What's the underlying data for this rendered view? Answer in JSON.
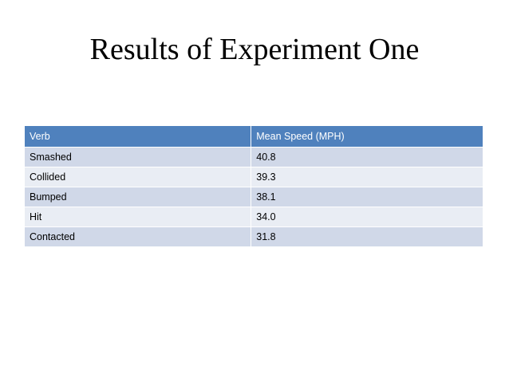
{
  "slide": {
    "title": "Results of Experiment One"
  },
  "table": {
    "headers": [
      "Verb",
      "Mean Speed (MPH)"
    ],
    "rows": [
      [
        "Smashed",
        "40.8"
      ],
      [
        "Collided",
        "39.3"
      ],
      [
        "Bumped",
        "38.1"
      ],
      [
        "Hit",
        "34.0"
      ],
      [
        "Contacted",
        "31.8"
      ]
    ],
    "colors": {
      "header_bg": "#4f81bd",
      "header_text": "#ffffff",
      "row_odd_bg": "#d0d8e8",
      "row_even_bg": "#e9edf4"
    }
  }
}
